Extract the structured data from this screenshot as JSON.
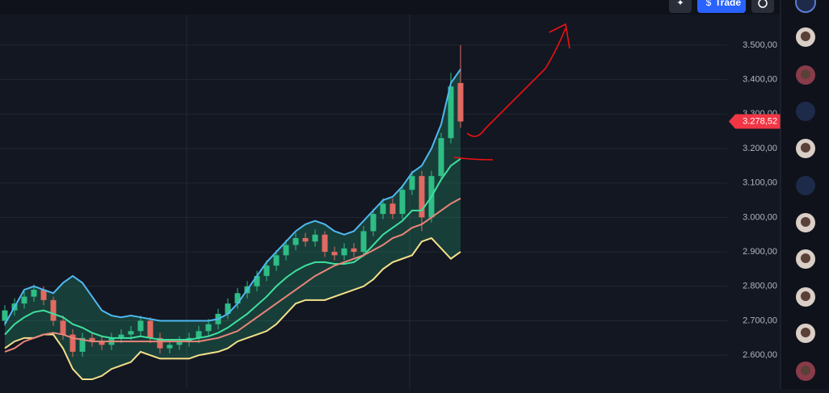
{
  "chart_data": {
    "type": "candlestick",
    "ylim": [
      2502,
      3631
    ],
    "yticks": [
      {
        "value": 2600,
        "label": "2.600,00"
      },
      {
        "value": 2700,
        "label": "2.700,00"
      },
      {
        "value": 2800,
        "label": "2.800,00"
      },
      {
        "value": 2900,
        "label": "2.900,00"
      },
      {
        "value": 3000,
        "label": "3.000,00"
      },
      {
        "value": 3100,
        "label": "3.100,00"
      },
      {
        "value": 3200,
        "label": "3.200,00"
      },
      {
        "value": 3300,
        "label": "3.300,00"
      },
      {
        "value": 3400,
        "label": "3.400,00"
      },
      {
        "value": 3500,
        "label": "3.500,00"
      }
    ],
    "grid": true,
    "up_color": "#2ebd85",
    "down_color": "#e06a62",
    "open": [
      2700,
      2730,
      2750,
      2770,
      2790,
      2760,
      2700,
      2660,
      2610,
      2650,
      2640,
      2630,
      2650,
      2660,
      2670,
      2700,
      2650,
      2620,
      2630,
      2640,
      2650,
      2670,
      2690,
      2720,
      2750,
      2780,
      2800,
      2830,
      2860,
      2890,
      2920,
      2940,
      2930,
      2950,
      2900,
      2890,
      2910,
      2900,
      2960,
      3010,
      3040,
      3010,
      3080,
      3120,
      3000,
      3120,
      3230,
      3390
    ],
    "high": [
      2745,
      2765,
      2785,
      2805,
      2800,
      2770,
      2715,
      2675,
      2665,
      2665,
      2655,
      2665,
      2675,
      2685,
      2715,
      2710,
      2665,
      2645,
      2655,
      2665,
      2685,
      2705,
      2735,
      2765,
      2795,
      2815,
      2845,
      2875,
      2905,
      2935,
      2955,
      2955,
      2965,
      2960,
      2915,
      2925,
      2925,
      2975,
      3025,
      3055,
      3055,
      3095,
      3135,
      3135,
      3135,
      3245,
      3420,
      3500
    ],
    "low": [
      2685,
      2715,
      2735,
      2755,
      2745,
      2685,
      2645,
      2595,
      2595,
      2625,
      2615,
      2615,
      2635,
      2645,
      2655,
      2635,
      2605,
      2605,
      2615,
      2625,
      2635,
      2655,
      2675,
      2705,
      2735,
      2765,
      2785,
      2815,
      2845,
      2875,
      2905,
      2915,
      2915,
      2885,
      2875,
      2875,
      2885,
      2885,
      2945,
      2995,
      2995,
      2995,
      3065,
      2960,
      2985,
      3105,
      3215,
      3260
    ],
    "close": [
      2730,
      2750,
      2770,
      2790,
      2760,
      2700,
      2660,
      2610,
      2650,
      2640,
      2630,
      2650,
      2660,
      2670,
      2700,
      2650,
      2620,
      2630,
      2640,
      2650,
      2670,
      2690,
      2720,
      2750,
      2780,
      2800,
      2830,
      2860,
      2890,
      2920,
      2940,
      2930,
      2950,
      2900,
      2890,
      2910,
      2900,
      2960,
      3010,
      3040,
      3010,
      3080,
      3120,
      3000,
      3120,
      3230,
      3380,
      3278.52
    ],
    "series": [
      {
        "color": "#4fb8f0",
        "values": [
          2690,
          2740,
          2790,
          2800,
          2790,
          2780,
          2810,
          2830,
          2810,
          2770,
          2730,
          2715,
          2710,
          2715,
          2710,
          2705,
          2700,
          2700,
          2700,
          2700,
          2700,
          2700,
          2705,
          2720,
          2750,
          2790,
          2830,
          2870,
          2900,
          2930,
          2960,
          2980,
          2990,
          2980,
          2960,
          2950,
          2960,
          2990,
          3020,
          3050,
          3060,
          3090,
          3130,
          3150,
          3200,
          3270,
          3390,
          3430
        ]
      },
      {
        "color": "#3ee0a0",
        "values": [
          2660,
          2690,
          2710,
          2725,
          2730,
          2720,
          2710,
          2690,
          2680,
          2665,
          2655,
          2650,
          2650,
          2650,
          2655,
          2650,
          2645,
          2645,
          2645,
          2645,
          2650,
          2655,
          2665,
          2680,
          2700,
          2720,
          2745,
          2770,
          2800,
          2825,
          2845,
          2860,
          2870,
          2870,
          2865,
          2865,
          2870,
          2890,
          2920,
          2950,
          2970,
          2990,
          3020,
          3020,
          3060,
          3110,
          3150,
          3170
        ]
      },
      {
        "color": "#f5e08a",
        "values": [
          2620,
          2640,
          2650,
          2650,
          2660,
          2660,
          2620,
          2560,
          2530,
          2530,
          2540,
          2560,
          2570,
          2580,
          2610,
          2600,
          2590,
          2590,
          2590,
          2590,
          2600,
          2605,
          2610,
          2620,
          2640,
          2650,
          2660,
          2670,
          2690,
          2720,
          2750,
          2760,
          2760,
          2760,
          2770,
          2780,
          2790,
          2800,
          2820,
          2850,
          2870,
          2880,
          2890,
          2930,
          2940,
          2910,
          2880,
          2900
        ]
      },
      {
        "color": "#e8857a",
        "values": [
          2610,
          2620,
          2640,
          2650,
          2660,
          2665,
          2660,
          2650,
          2645,
          2640,
          2640,
          2640,
          2640,
          2640,
          2640,
          2640,
          2640,
          2640,
          2640,
          2640,
          2640,
          2645,
          2650,
          2660,
          2670,
          2690,
          2710,
          2730,
          2750,
          2770,
          2790,
          2810,
          2830,
          2845,
          2860,
          2870,
          2880,
          2890,
          2905,
          2920,
          2940,
          2950,
          2970,
          2980,
          3000,
          3020,
          3040,
          3055
        ]
      }
    ],
    "band_fill": "rgba(38,166,120,0.28)",
    "last_price": {
      "value": 3278.52,
      "label": "3.278,52"
    },
    "last_price_color": "#f23645"
  },
  "toolbar": {
    "trade_icon": "$",
    "trade_button": "Trade"
  }
}
